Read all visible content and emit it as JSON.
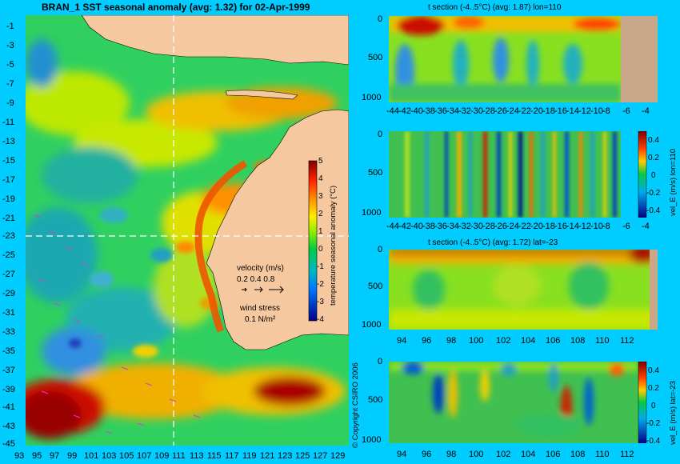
{
  "colors": {
    "background": "#00ccff",
    "land": "#f6c8a0",
    "section_land": "#c9a889",
    "guide_line": "#ffffff",
    "arrow": "#cc44cc"
  },
  "chart_data": [
    {
      "type": "heatmap",
      "title": "BRAN_1 SST seasonal anomaly (avg: 1.32) for 02-Apr-1999",
      "x_ticks": [
        "93",
        "95",
        "97",
        "99",
        "101",
        "103",
        "105",
        "107",
        "109",
        "111",
        "113",
        "115",
        "117",
        "119",
        "121",
        "123",
        "125",
        "127",
        "129"
      ],
      "y_ticks": [
        "-1",
        "-3",
        "-5",
        "-7",
        "-9",
        "-11",
        "-13",
        "-15",
        "-17",
        "-19",
        "-21",
        "-23",
        "-25",
        "-27",
        "-29",
        "-31",
        "-33",
        "-35",
        "-37",
        "-39",
        "-41",
        "-43",
        "-45"
      ],
      "xlim": [
        93,
        130
      ],
      "ylim": [
        -45,
        0
      ],
      "guide_lon": 110,
      "guide_lat": -23,
      "colorbar": {
        "label": "temperature seasonal anomaly (°C)",
        "ticks": [
          "5",
          "4",
          "3",
          "2",
          "1",
          "0",
          "-1",
          "-2",
          "-3",
          "-4"
        ],
        "range": [
          -4,
          5
        ]
      },
      "legend": {
        "velocity_title": "velocity (m/s)",
        "velocity_values": "0.2 0.4 0.8",
        "wind_title": "wind stress",
        "wind_value": "0.1 N/m²"
      },
      "copyright": "© Copyright CSIRO 2006"
    },
    {
      "type": "heatmap",
      "title": "t section (-4..5°C) (avg: 1.87) lon=110",
      "x_ticks": [
        "-44",
        "-42",
        "-40",
        "-38",
        "-36",
        "-34",
        "-32",
        "-30",
        "-28",
        "-26",
        "-24",
        "-22",
        "-20",
        "-18",
        "-16",
        "-14",
        "-12",
        "-10",
        "-8",
        "-6",
        "-4"
      ],
      "y_ticks": [
        "0",
        "500",
        "1000"
      ],
      "xlim": [
        -45,
        -2
      ],
      "ylim": [
        1050,
        0
      ]
    },
    {
      "type": "heatmap",
      "title": "",
      "x_ticks": [
        "-44",
        "-42",
        "-40",
        "-38",
        "-36",
        "-34",
        "-32",
        "-30",
        "-28",
        "-26",
        "-24",
        "-22",
        "-20",
        "-18",
        "-16",
        "-14",
        "-12",
        "-10",
        "-8",
        "-6",
        "-4"
      ],
      "y_ticks": [
        "0",
        "500",
        "1000"
      ],
      "xlim": [
        -45,
        -2
      ],
      "ylim": [
        1050,
        0
      ],
      "colorbar": {
        "label": "vel_E (m/s) lon=110",
        "ticks": [
          "0.4",
          "0.2",
          "0",
          "-0.2",
          "-0.4"
        ],
        "range": [
          -0.5,
          0.5
        ]
      }
    },
    {
      "type": "heatmap",
      "title": "t section (-4..5°C) (avg: 1.72) lat=-23",
      "x_ticks": [
        "94",
        "96",
        "98",
        "100",
        "102",
        "104",
        "106",
        "108",
        "110",
        "112"
      ],
      "y_ticks": [
        "0",
        "500",
        "1000"
      ],
      "xlim": [
        93,
        114
      ],
      "ylim": [
        1050,
        0
      ]
    },
    {
      "type": "heatmap",
      "title": "",
      "x_ticks": [
        "94",
        "96",
        "98",
        "100",
        "102",
        "104",
        "106",
        "108",
        "110",
        "112"
      ],
      "y_ticks": [
        "0",
        "500",
        "1000"
      ],
      "xlim": [
        93,
        114
      ],
      "ylim": [
        1050,
        0
      ],
      "colorbar": {
        "label": "vel_E (m/s) lat=-23",
        "ticks": [
          "0.4",
          "0.2",
          "0",
          "-0.2",
          "-0.4"
        ],
        "range": [
          -0.5,
          0.5
        ]
      }
    }
  ]
}
